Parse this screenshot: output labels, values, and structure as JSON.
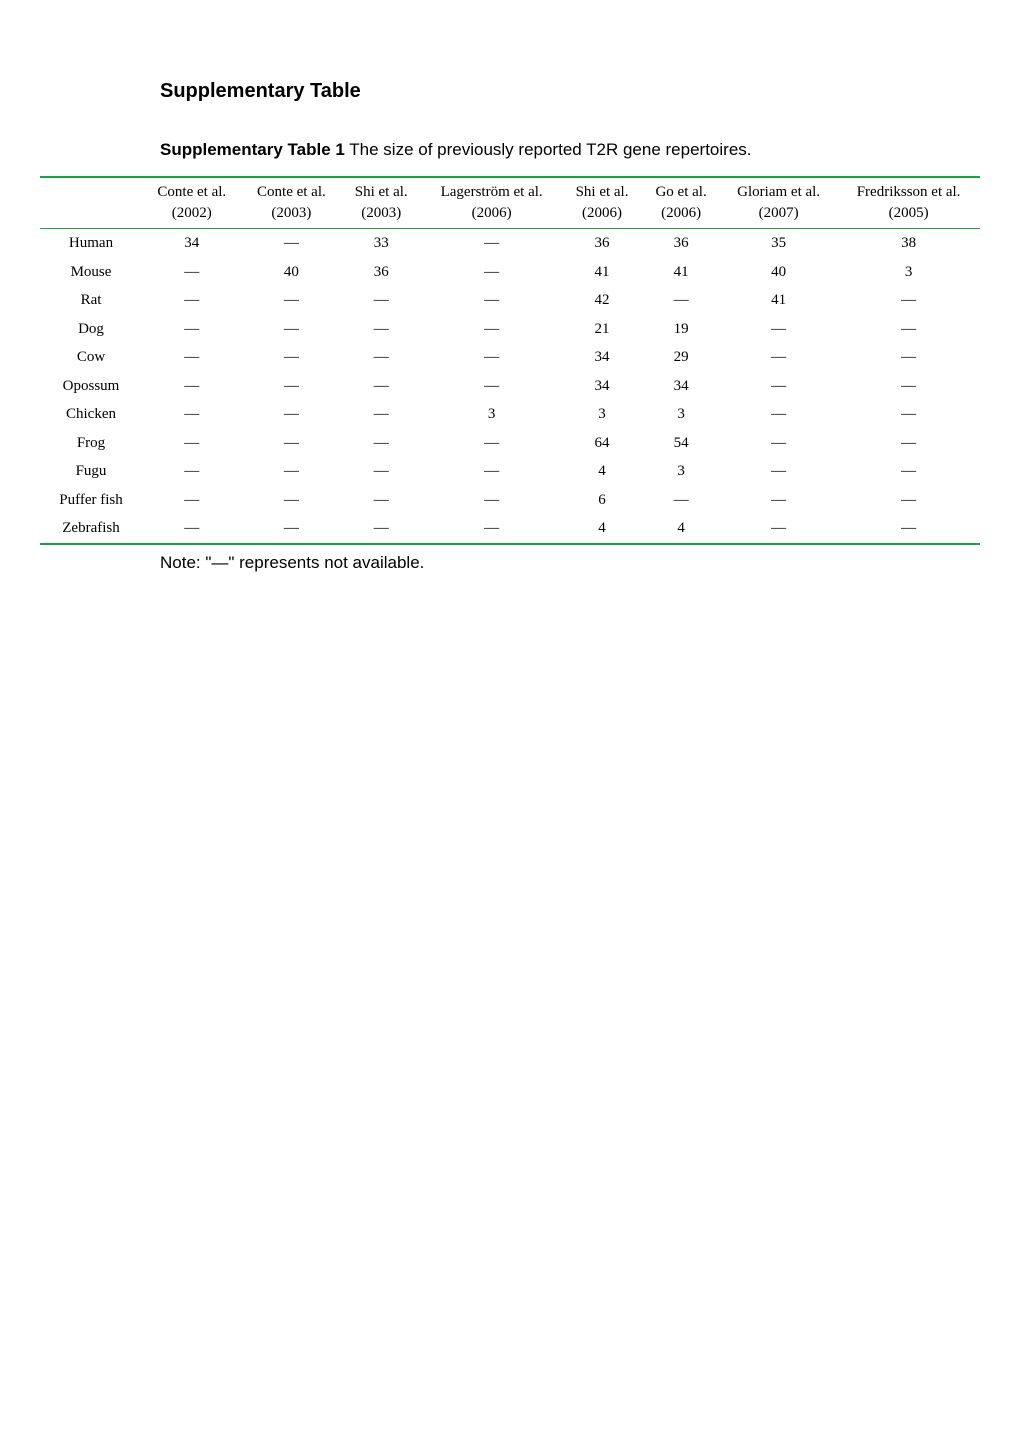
{
  "heading": "Supplementary Table",
  "caption_bold": "Supplementary Table 1",
  "caption_rest": " The size of previously reported T2R gene repertoires.",
  "note": "Note: \"—\" represents not available.",
  "table": {
    "columns": [
      "",
      "Conte et al. (2002)",
      "Conte et al. (2003)",
      "Shi et al. (2003)",
      "Lagerström et al. (2006)",
      "Shi et al. (2006)",
      "Go et al. (2006)",
      "Gloriam et al. (2007)",
      "Fredriksson et al. (2005)"
    ],
    "rows": [
      [
        "Human",
        "34",
        "—",
        "33",
        "—",
        "36",
        "36",
        "35",
        "38"
      ],
      [
        "Mouse",
        "—",
        "40",
        "36",
        "—",
        "41",
        "41",
        "40",
        "3"
      ],
      [
        "Rat",
        "—",
        "—",
        "—",
        "—",
        "42",
        "—",
        "41",
        "—"
      ],
      [
        "Dog",
        "—",
        "—",
        "—",
        "—",
        "21",
        "19",
        "—",
        "—"
      ],
      [
        "Cow",
        "—",
        "—",
        "—",
        "—",
        "34",
        "29",
        "—",
        "—"
      ],
      [
        "Opossum",
        "—",
        "—",
        "—",
        "—",
        "34",
        "34",
        "—",
        "—"
      ],
      [
        "Chicken",
        "—",
        "—",
        "—",
        "3",
        "3",
        "3",
        "—",
        "—"
      ],
      [
        "Frog",
        "—",
        "—",
        "—",
        "—",
        "64",
        "54",
        "—",
        "—"
      ],
      [
        "Fugu",
        "—",
        "—",
        "—",
        "—",
        "4",
        "3",
        "—",
        "—"
      ],
      [
        "Puffer fish",
        "—",
        "—",
        "—",
        "—",
        "6",
        "—",
        "—",
        "—"
      ],
      [
        "Zebrafish",
        "—",
        "—",
        "—",
        "—",
        "4",
        "4",
        "—",
        "—"
      ]
    ],
    "border_color": "#18a34a",
    "header_font": "Times New Roman",
    "body_font": "Times New Roman",
    "cell_fontsize": 15
  }
}
